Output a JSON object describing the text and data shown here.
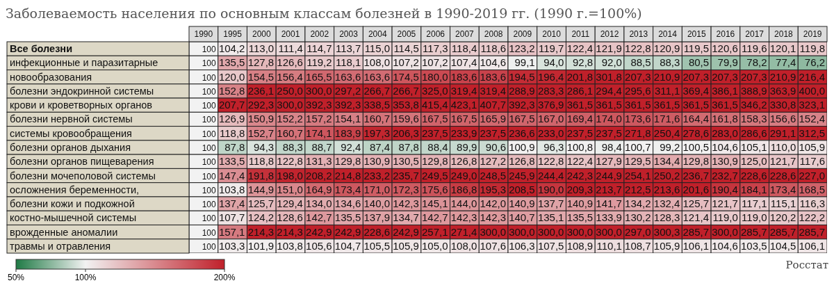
{
  "chart_data": {
    "type": "heatmap",
    "title": "Заболеваемость населения по основным классам болезней в 1990-2019 гг. (1990 г.=100%)",
    "categories": [
      "1990",
      "1995",
      "2000",
      "2001",
      "2002",
      "2003",
      "2004",
      "2005",
      "2006",
      "2007",
      "2008",
      "2009",
      "2010",
      "2011",
      "2012",
      "2013",
      "2014",
      "2015",
      "2016",
      "2017",
      "2018",
      "2019"
    ],
    "y_categories": [
      "Все болезни",
      "инфекционные и паразитарные",
      "новообразования",
      "болезни эндокринной системы",
      "крови и кроветворных органов",
      "болезни нервной системы",
      "системы кровообращения",
      "болезни органов дыхания",
      "болезни органов пищеварения",
      "болезни мочеполовой системы",
      "осложнения беременности,",
      "болезни кожи и подкожной",
      "костно-мышечной системы",
      "врожденные аномалии",
      "травмы и отравления"
    ],
    "cells": [
      [
        100,
        104.2,
        113.0,
        111.4,
        114.7,
        113.7,
        115.0,
        114.5,
        117.3,
        118.4,
        118.6,
        123.2,
        119.7,
        122.4,
        121.9,
        122.8,
        120.9,
        119.5,
        120.6,
        119.6,
        120.1,
        119.8
      ],
      [
        100,
        135.5,
        127.8,
        126.6,
        119.2,
        118.1,
        108.0,
        107.2,
        107.2,
        107.4,
        104.6,
        99.1,
        94.0,
        92.8,
        92.0,
        88.5,
        88.3,
        80.5,
        79.9,
        78.2,
        77.4,
        76.2
      ],
      [
        100,
        120.0,
        154.5,
        156.4,
        165.5,
        163.6,
        163.6,
        174.5,
        180.0,
        183.6,
        183.6,
        194.5,
        196.4,
        201.8,
        301.8,
        207.3,
        210.9,
        207.3,
        207.3,
        207.3,
        210.9,
        216.4
      ],
      [
        100,
        152.8,
        236.1,
        250.0,
        300.0,
        297.2,
        266.7,
        266.7,
        325.0,
        319.4,
        319.4,
        288.9,
        283.3,
        286.1,
        294.4,
        295.6,
        311.1,
        369.4,
        386.1,
        388.9,
        363.9,
        400.0
      ],
      [
        100,
        207.7,
        292.3,
        300.0,
        392.3,
        392.3,
        338.5,
        353.8,
        415.4,
        423.1,
        407.7,
        392.3,
        376.9,
        361.5,
        361.5,
        361.5,
        361.5,
        361.5,
        361.5,
        346.2,
        330.8,
        323.1
      ],
      [
        100,
        126.9,
        150.9,
        152.2,
        157.2,
        154.1,
        160.7,
        159.6,
        167.5,
        167.5,
        165.9,
        167.5,
        167.0,
        169.4,
        174.0,
        173.6,
        171.6,
        164.4,
        161.8,
        158.3,
        156.6,
        152.4
      ],
      [
        100,
        118.8,
        152.7,
        160.7,
        174.1,
        183.9,
        197.3,
        206.3,
        237.5,
        233.9,
        237.5,
        236.6,
        233.0,
        237.5,
        237.5,
        271.8,
        250.4,
        278.6,
        283.0,
        286.6,
        291.1,
        312.5
      ],
      [
        100,
        87.8,
        94.3,
        88.3,
        88.7,
        92.4,
        87.4,
        87.8,
        88.4,
        89.9,
        90.6,
        100.9,
        96.3,
        100.8,
        98.4,
        100.7,
        99.2,
        100.5,
        104.6,
        105.1,
        110.0,
        105.9
      ],
      [
        100,
        133.5,
        118.8,
        122.8,
        131.3,
        129.8,
        130.9,
        130.5,
        129.8,
        126.8,
        127.2,
        126.8,
        122.8,
        122.4,
        127.9,
        129.5,
        134.4,
        129.8,
        130.9,
        125.0,
        121.7,
        117.6
      ],
      [
        100,
        147.4,
        191.8,
        198.0,
        208.2,
        214.8,
        233.2,
        235.7,
        249.5,
        249.0,
        248.5,
        245.9,
        244.4,
        242.3,
        244.9,
        254.1,
        250.2,
        236.7,
        232.7,
        228.6,
        228.6,
        227.0
      ],
      [
        100,
        103.8,
        144.9,
        151.0,
        164.9,
        173.4,
        171.0,
        172.3,
        175.6,
        186.8,
        195.3,
        208.5,
        190.0,
        209.3,
        213.7,
        212.5,
        213.6,
        201.6,
        190.4,
        184.1,
        173.4,
        168.5
      ],
      [
        100,
        137.4,
        125.7,
        129.4,
        134.0,
        134.6,
        140.0,
        142.3,
        145.1,
        144.0,
        142.0,
        140.9,
        137.7,
        140.9,
        141.7,
        134.2,
        132.4,
        125.7,
        121.7,
        117.1,
        115.1,
        116.3
      ],
      [
        100,
        107.7,
        124.2,
        128.6,
        142.7,
        135.5,
        137.9,
        134.7,
        142.7,
        142.3,
        142.3,
        140.7,
        135.1,
        135.5,
        133.9,
        130.2,
        128.3,
        121.4,
        119.0,
        119.0,
        120.2,
        122.2
      ],
      [
        100,
        157.1,
        214.3,
        214.3,
        242.9,
        242.9,
        228.6,
        242.9,
        257.1,
        271.4,
        300.0,
        300.0,
        300.0,
        300.0,
        300.0,
        297.0,
        300.3,
        285.7,
        300.0,
        285.7,
        285.7,
        285.7
      ],
      [
        100,
        103.3,
        101.9,
        103.8,
        105.6,
        104.7,
        105.5,
        105.9,
        105.0,
        108.0,
        107.6,
        106.3,
        107.5,
        108.9,
        110.1,
        108.7,
        105.9,
        106.1,
        104.6,
        103.5,
        104.5,
        106.1
      ]
    ],
    "cell_labels": [
      [
        "100",
        "104,2",
        "113,0",
        "111,4",
        "114,7",
        "113,7",
        "115,0",
        "114,5",
        "117,3",
        "118,4",
        "118,6",
        "123,2",
        "119,7",
        "122,4",
        "121,9",
        "122,8",
        "120,9",
        "119,5",
        "120,6",
        "119,6",
        "120,1",
        "119,8"
      ],
      [
        "100",
        "135,5",
        "127,8",
        "126,6",
        "119,2",
        "118,1",
        "108,0",
        "107,2",
        "107,2",
        "107,4",
        "104,6",
        "99,1",
        "94,0",
        "92,8",
        "92,0",
        "88,5",
        "88,3",
        "80,5",
        "79,9",
        "78,2",
        "77,4",
        "76,2"
      ],
      [
        "100",
        "120,0",
        "154,5",
        "156,4",
        "165,5",
        "163,6",
        "163,6",
        "174,5",
        "180,0",
        "183,6",
        "183,6",
        "194,5",
        "196,4",
        "201,8",
        "301,8",
        "207,3",
        "210,9",
        "207,3",
        "207,3",
        "207,3",
        "210,9",
        "216,4"
      ],
      [
        "100",
        "152,8",
        "236,1",
        "250,0",
        "300,0",
        "297,2",
        "266,7",
        "266,7",
        "325,0",
        "319,4",
        "319,4",
        "288,9",
        "283,3",
        "286,1",
        "294,4",
        "295,6",
        "311,1",
        "369,4",
        "386,1",
        "388,9",
        "363,9",
        "400,0"
      ],
      [
        "100",
        "207,7",
        "292,3",
        "300,0",
        "392,3",
        "392,3",
        "338,5",
        "353,8",
        "415,4",
        "423,1",
        "407,7",
        "392,3",
        "376,9",
        "361,5",
        "361,5",
        "361,5",
        "361,5",
        "361,5",
        "361,5",
        "346,2",
        "330,8",
        "323,1"
      ],
      [
        "100",
        "126,9",
        "150,9",
        "152,2",
        "157,2",
        "154,1",
        "160,7",
        "159,6",
        "167,5",
        "167,5",
        "165,9",
        "167,5",
        "167,0",
        "169,4",
        "174,0",
        "173,6",
        "171,6",
        "164,4",
        "161,8",
        "158,3",
        "156,6",
        "152,4"
      ],
      [
        "100",
        "118,8",
        "152,7",
        "160,7",
        "174,1",
        "183,9",
        "197,3",
        "206,3",
        "237,5",
        "233,9",
        "237,5",
        "236,6",
        "233,0",
        "237,5",
        "237,5",
        "271,8",
        "250,4",
        "278,6",
        "283,0",
        "286,6",
        "291,1",
        "312,5"
      ],
      [
        "100",
        "87,8",
        "94,3",
        "88,3",
        "88,7",
        "92,4",
        "87,4",
        "87,8",
        "88,4",
        "89,9",
        "90,6",
        "100,9",
        "96,3",
        "100,8",
        "98,4",
        "100,7",
        "99,2",
        "100,5",
        "104,6",
        "105,1",
        "110,0",
        "105,9"
      ],
      [
        "100",
        "133,5",
        "118,8",
        "122,8",
        "131,3",
        "129,8",
        "130,9",
        "130,5",
        "129,8",
        "126,8",
        "127,2",
        "126,8",
        "122,8",
        "122,4",
        "127,9",
        "129,5",
        "134,4",
        "129,8",
        "130,9",
        "125,0",
        "121,7",
        "117,6"
      ],
      [
        "100",
        "147,4",
        "191,8",
        "198,0",
        "208,2",
        "214,8",
        "233,2",
        "235,7",
        "249,5",
        "249,0",
        "248,5",
        "245,9",
        "244,4",
        "242,3",
        "244,9",
        "254,1",
        "250,2",
        "236,7",
        "232,7",
        "228,6",
        "228,6",
        "227,0"
      ],
      [
        "100",
        "103,8",
        "144,9",
        "151,0",
        "164,9",
        "173,4",
        "171,0",
        "172,3",
        "175,6",
        "186,8",
        "195,3",
        "208,5",
        "190,0",
        "209,3",
        "213,7",
        "212,5",
        "213,6",
        "201,6",
        "190,4",
        "184,1",
        "173,4",
        "168,5"
      ],
      [
        "100",
        "137,4",
        "125,7",
        "129,4",
        "134,0",
        "134,6",
        "140,0",
        "142,3",
        "145,1",
        "144,0",
        "142,0",
        "140,9",
        "137,7",
        "140,9",
        "141,7",
        "134,2",
        "132,4",
        "125,7",
        "121,7",
        "117,1",
        "115,1",
        "116,3"
      ],
      [
        "100",
        "107,7",
        "124,2",
        "128,6",
        "142,7",
        "135,5",
        "137,9",
        "134,7",
        "142,7",
        "142,3",
        "142,3",
        "140,7",
        "135,1",
        "135,5",
        "133,9",
        "130,2",
        "128,3",
        "121,4",
        "119,0",
        "119,0",
        "120,2",
        "122,2"
      ],
      [
        "100",
        "157,1",
        "214,3",
        "214,3",
        "242,9",
        "242,9",
        "228,6",
        "242,9",
        "257,1",
        "271,4",
        "300,0",
        "300,0",
        "300,0",
        "300,0",
        "300,0",
        "297,0",
        "300,3",
        "285,7",
        "300,0",
        "285,7",
        "285,7",
        "285,7"
      ],
      [
        "100",
        "103,3",
        "101,9",
        "103,8",
        "105,6",
        "104,7",
        "105,5",
        "105,9",
        "105,0",
        "108,0",
        "107,6",
        "106,3",
        "107,5",
        "108,9",
        "110,1",
        "108,7",
        "105,9",
        "106,1",
        "104,6",
        "103,5",
        "104,5",
        "106,1"
      ]
    ],
    "clim": [
      50,
      200
    ],
    "cticks": [
      {
        "value": 50,
        "label": "50%"
      },
      {
        "value": 100,
        "label": "100%"
      },
      {
        "value": 200,
        "label": "200%"
      }
    ],
    "annotations": [
      "Росстат"
    ]
  }
}
